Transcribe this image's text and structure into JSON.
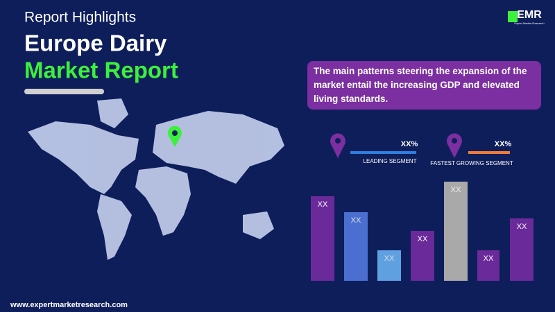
{
  "header": {
    "kicker": "Report Highlights",
    "title_line1": "Europe Dairy",
    "title_line2": "Market Report",
    "logo": "EMR",
    "logo_tagline": "Expert Market Research"
  },
  "highlight": "The main patterns steering the expansion of the market entail the increasing GDP and elevated living standards.",
  "segments": [
    {
      "value": "XX%",
      "label": "LEADING SEGMENT"
    },
    {
      "value": "XX%",
      "label": "FASTEST GROWING SEGMENT"
    }
  ],
  "bars": [
    "XX",
    "XX",
    "XX",
    "XX",
    "XX",
    "XX",
    "XX"
  ],
  "footer": "www.expertmarketresearch.com"
}
